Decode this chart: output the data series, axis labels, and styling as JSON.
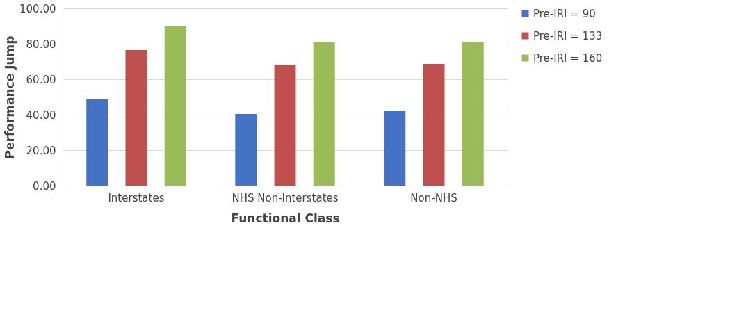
{
  "chart_data": {
    "type": "bar",
    "xlabel": "Functional Class",
    "ylabel": "Performance Jump",
    "categories": [
      "Interstates",
      "NHS Non-Interstates",
      "Non-NHS"
    ],
    "series": [
      {
        "name": "Pre-IRI = 90",
        "color": "#4472c4",
        "values": [
          48.6,
          40.4,
          42.4
        ]
      },
      {
        "name": "Pre-IRI = 133",
        "color": "#c0504d",
        "values": [
          76.5,
          68.2,
          68.6
        ]
      },
      {
        "name": "Pre-IRI = 160",
        "color": "#9bbb59",
        "values": [
          89.8,
          80.8,
          80.8
        ]
      }
    ],
    "ylim": [
      0,
      100
    ],
    "yticks": [
      {
        "value": 0,
        "label": "0.00"
      },
      {
        "value": 20,
        "label": "20.00"
      },
      {
        "value": 40,
        "label": "40.00"
      },
      {
        "value": 60,
        "label": "60.00"
      },
      {
        "value": 80,
        "label": "80.00"
      },
      {
        "value": 100,
        "label": "100.00"
      }
    ],
    "grid": "y",
    "legend": "right"
  }
}
